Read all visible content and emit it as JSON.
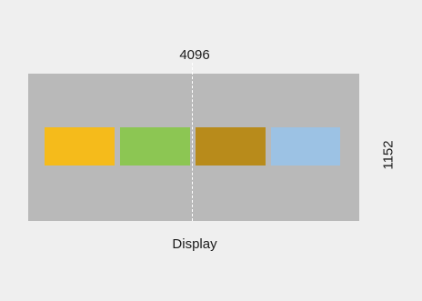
{
  "labels": {
    "width": "4096",
    "height": "1152",
    "display": "Display"
  },
  "colors": {
    "background": "#efefef",
    "display": "#b9b9b9",
    "center_line": "#ffffff",
    "blocks": [
      "#f5bb1b",
      "#8cc653",
      "#b88b1b",
      "#9cc2e4"
    ]
  }
}
